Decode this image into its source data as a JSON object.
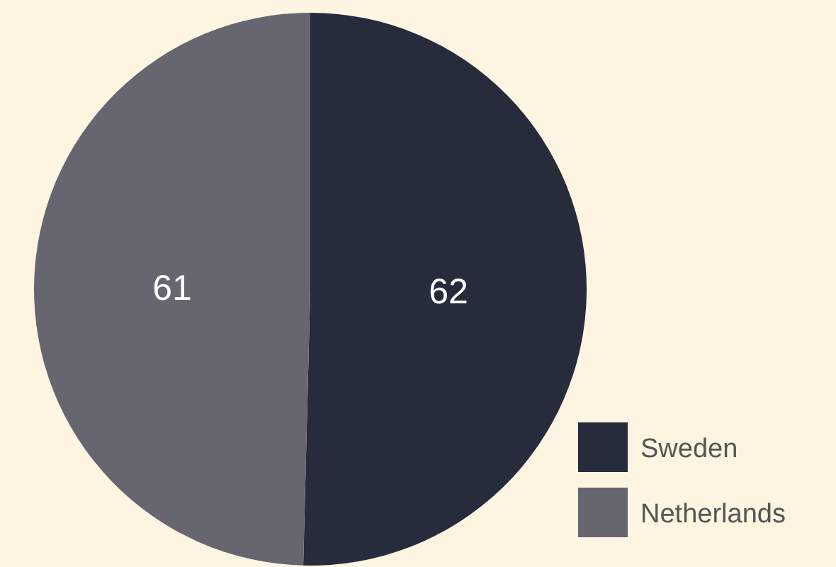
{
  "chart_data": {
    "type": "pie",
    "categories": [
      "Sweden",
      "Netherlands"
    ],
    "values": [
      62,
      61
    ],
    "colors": [
      "#262c3c",
      "#666570"
    ],
    "data_labels": true,
    "legend": "bottom right"
  }
}
